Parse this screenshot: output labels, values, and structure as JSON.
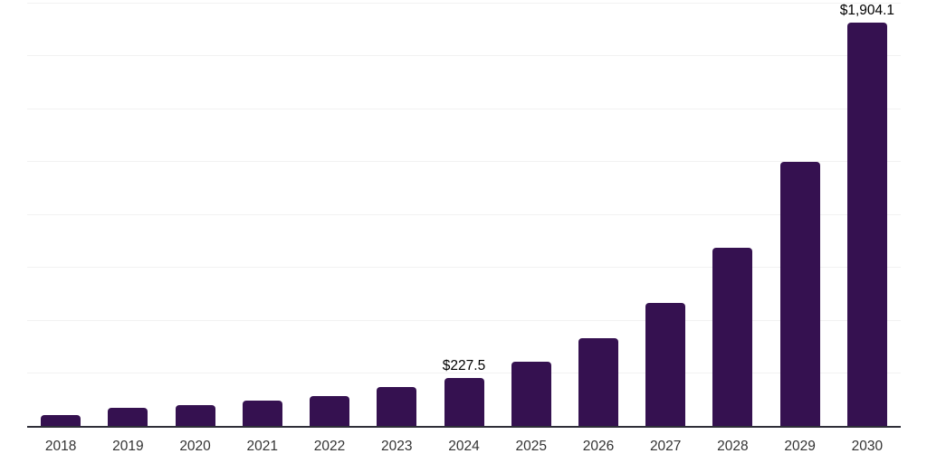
{
  "chart_data": {
    "type": "bar",
    "title": "",
    "xlabel": "",
    "ylabel": "",
    "categories": [
      "2018",
      "2019",
      "2020",
      "2021",
      "2022",
      "2023",
      "2024",
      "2025",
      "2026",
      "2027",
      "2028",
      "2029",
      "2030"
    ],
    "values": [
      51.3,
      85.5,
      98.3,
      118.4,
      142.3,
      182.5,
      227.5,
      303.4,
      414.5,
      581.2,
      841.9,
      1247.9,
      1904.1
    ],
    "data_labels": [
      "",
      "",
      "",
      "",
      "",
      "",
      "$227.5",
      "",
      "",
      "",
      "",
      "",
      "$1,904.1"
    ],
    "ylim": [
      0,
      2000
    ],
    "grid_interval": 250,
    "grid": "horizontal-only",
    "y_tick_labels_visible": false,
    "legend": "none",
    "colors": {
      "bar": "#351150",
      "gridline": "#f2f2f2",
      "axis_line": "#2e2e38",
      "data_label": "#000000",
      "tick_label": "#333333",
      "background": "#ffffff"
    }
  }
}
